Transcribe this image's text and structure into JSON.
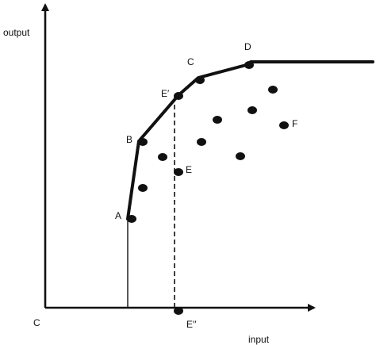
{
  "axes": {
    "y_label": "output",
    "x_label": "input",
    "origin_label": "C"
  },
  "points": {
    "A": "A",
    "B": "B",
    "E_prime": "E′",
    "C": "C",
    "D": "D",
    "E": "E",
    "F": "F",
    "E_double_prime": "E′′"
  },
  "colors": {
    "ink": "#111111"
  }
}
